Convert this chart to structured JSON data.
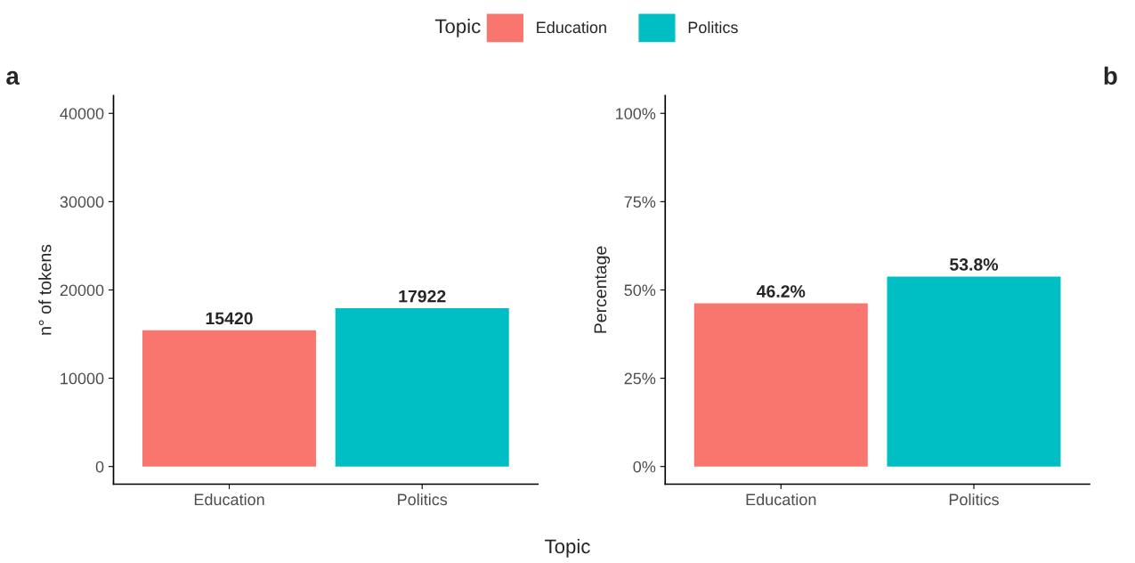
{
  "chart_data": [
    {
      "type": "bar",
      "categories": [
        "Education",
        "Politics"
      ],
      "ylabel": "n° of tokens",
      "xlabel": "Topic",
      "legend_title": "Topic",
      "legend": "top",
      "annotations": [
        "a"
      ],
      "grid": false,
      "data_labels": true,
      "series": [
        {
          "name": "Education",
          "color": "#f8766d",
          "values": [
            15420,
            null
          ]
        },
        {
          "name": "Politics",
          "color": "#00bfc4",
          "values": [
            null,
            17922
          ]
        }
      ],
      "ylim": [
        -2000,
        42000
      ],
      "yticks": [
        0,
        10000,
        20000,
        30000,
        40000
      ]
    },
    {
      "type": "bar",
      "categories": [
        "Education",
        "Politics"
      ],
      "ylabel": "Percentage",
      "annotations": [
        "b"
      ],
      "grid": false,
      "series": [
        {
          "color": "#f8766d",
          "values": [
            46.2,
            null
          ],
          "value_labels": [
            "46.2%",
            null
          ]
        },
        {
          "color": "#00bfc4",
          "values": [
            null,
            53.8
          ],
          "value_labels": [
            null,
            "53.8%"
          ]
        }
      ],
      "ylim": [
        -5,
        105
      ],
      "yticks": [
        {
          "value": 0,
          "label": "0%"
        },
        {
          "value": 25,
          "label": "25%"
        },
        {
          "value": 50,
          "label": "50%"
        },
        {
          "value": 75,
          "label": "75%"
        },
        {
          "value": 100,
          "label": "100%"
        }
      ]
    }
  ]
}
